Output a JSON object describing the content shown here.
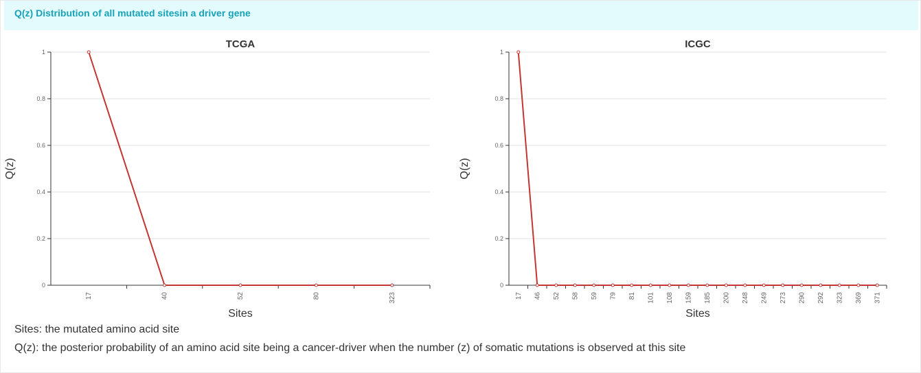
{
  "header": {
    "title": "Q(z) Distribution of all mutated sitesin a driver gene"
  },
  "notes": {
    "sites": "Sites: the mutated amino acid site",
    "qz": "Q(z): the posterior probability of an amino acid site being a cancer-driver when the number (z) of somatic mutations is observed at this site"
  },
  "colors": {
    "line": "#c23531",
    "grid": "#e0e0e0"
  },
  "chart_data": [
    {
      "type": "line",
      "title": "TCGA",
      "xlabel": "Sites",
      "ylabel": "Q(z)",
      "ylim": [
        0,
        1
      ],
      "yticks": [
        "0",
        "0.2",
        "0.4",
        "0.6",
        "0.8",
        "1"
      ],
      "categories": [
        "17",
        "40",
        "52",
        "80",
        "323"
      ],
      "values": [
        1,
        0,
        0,
        0,
        0
      ]
    },
    {
      "type": "line",
      "title": "ICGC",
      "xlabel": "Sites",
      "ylabel": "Q(z)",
      "ylim": [
        0,
        1
      ],
      "yticks": [
        "0",
        "0.2",
        "0.4",
        "0.6",
        "0.8",
        "1"
      ],
      "categories": [
        "17",
        "46",
        "52",
        "58",
        "59",
        "79",
        "81",
        "101",
        "108",
        "159",
        "185",
        "200",
        "248",
        "249",
        "273",
        "290",
        "292",
        "323",
        "369",
        "371"
      ],
      "values": [
        1,
        0,
        0,
        0,
        0,
        0,
        0,
        0,
        0,
        0,
        0,
        0,
        0,
        0,
        0,
        0,
        0,
        0,
        0,
        0
      ]
    }
  ]
}
